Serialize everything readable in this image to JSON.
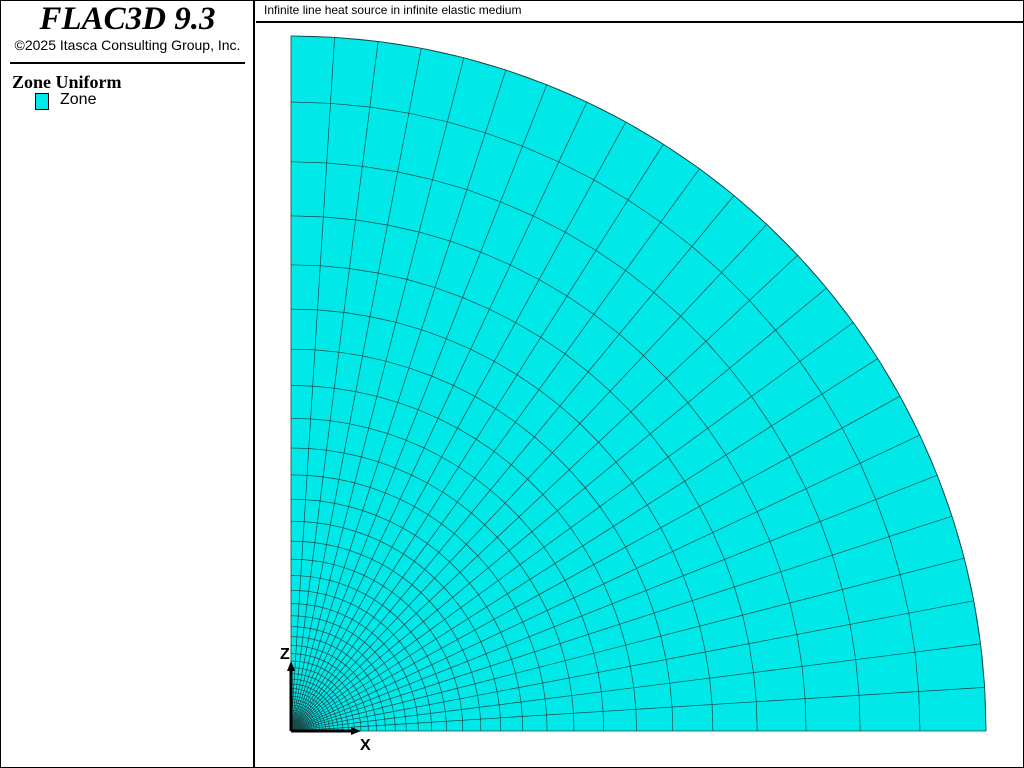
{
  "app": {
    "title": "FLAC3D 9.3",
    "copyright": "©2025 Itasca Consulting Group, Inc."
  },
  "legend": {
    "heading": "Zone Uniform",
    "items": [
      {
        "label": "Zone",
        "color": "#00e8e8"
      }
    ]
  },
  "plot": {
    "title": "Infinite line heat source in infinite elastic medium",
    "axes": {
      "x": "X",
      "z": "Z"
    },
    "zone_color": "#00e8e8",
    "mesh_line_color": "#1a4a4a"
  }
}
